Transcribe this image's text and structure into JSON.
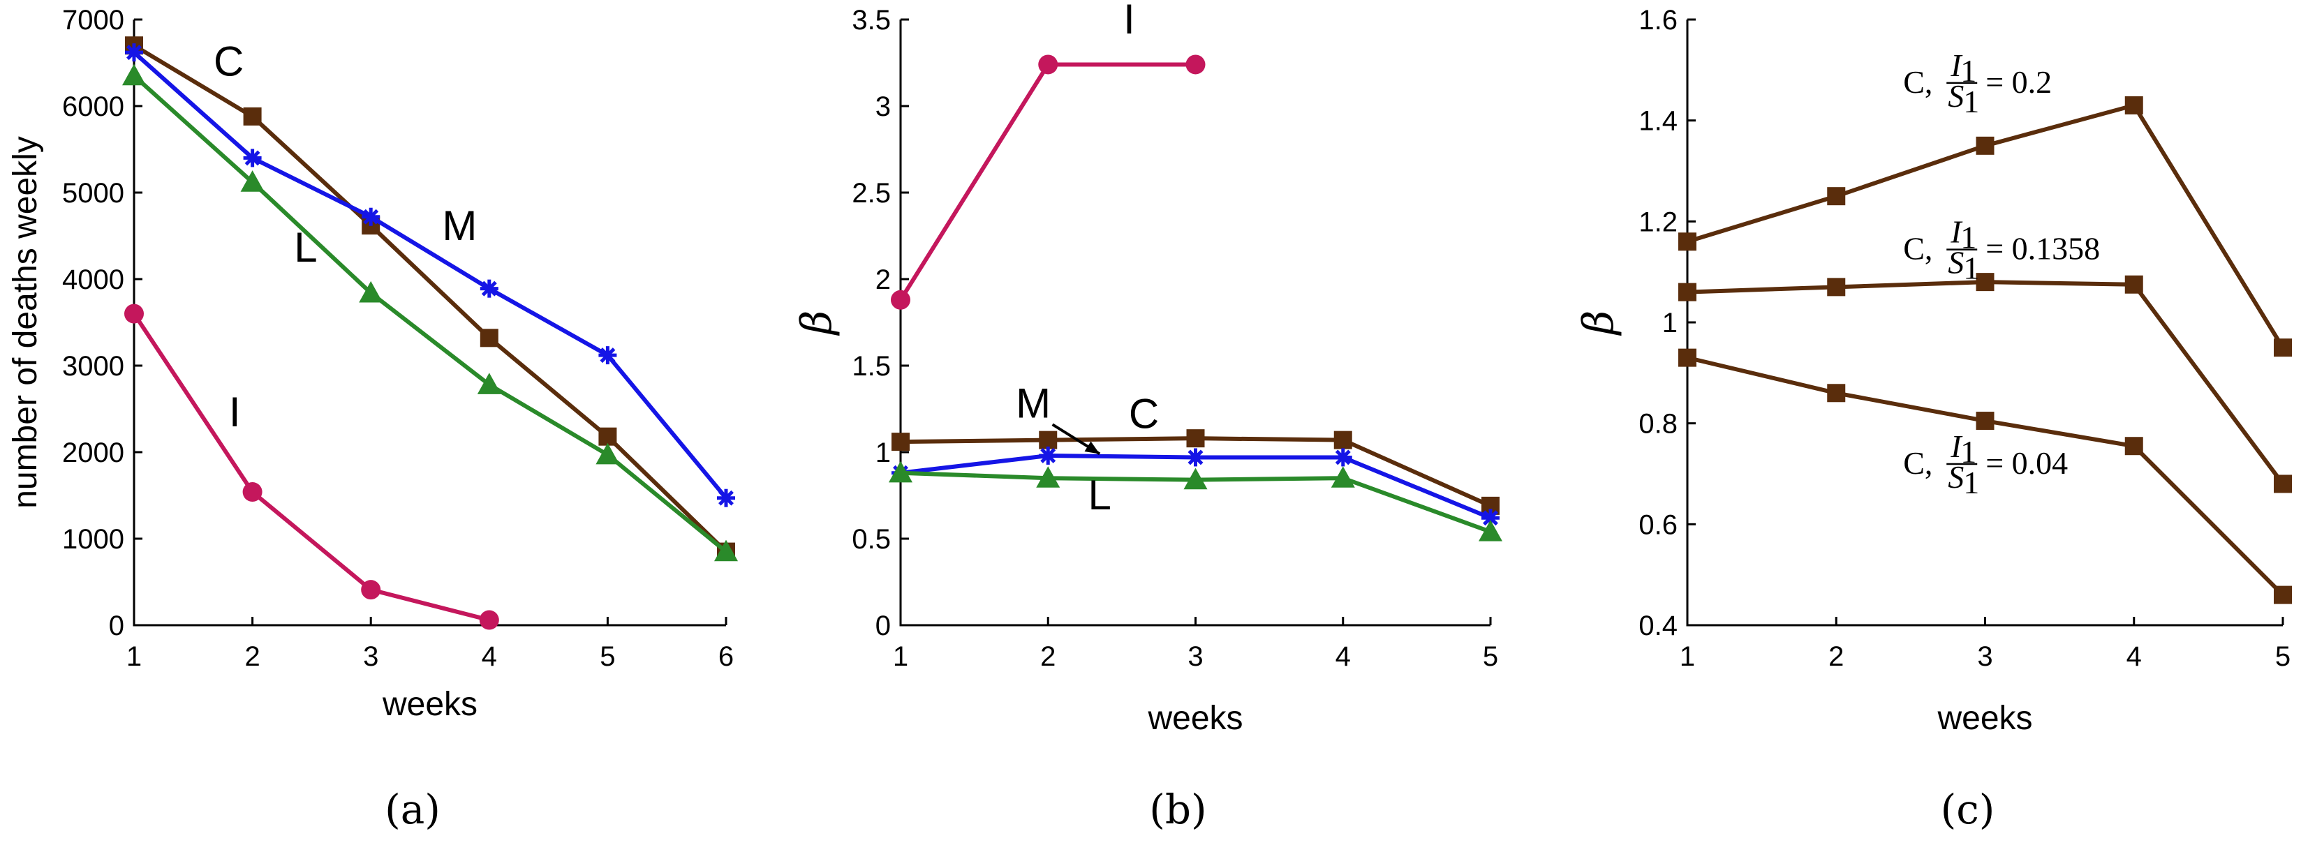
{
  "chart_data": [
    {
      "type": "line",
      "caption": "(a)",
      "xlabel": "weeks",
      "ylabel": "number of deaths weekly",
      "xlim": [
        1,
        6
      ],
      "ylim": [
        0,
        7000
      ],
      "xticks": [
        1,
        2,
        3,
        4,
        5,
        6
      ],
      "yticks": [
        0,
        1000,
        2000,
        3000,
        4000,
        5000,
        6000,
        7000
      ],
      "series": [
        {
          "name": "C",
          "color": "#5a2d0c",
          "marker": "square",
          "x": [
            1,
            2,
            3,
            4,
            5,
            6
          ],
          "y": [
            6700,
            5880,
            4620,
            3320,
            2180,
            850
          ]
        },
        {
          "name": "M",
          "color": "#1515e6",
          "marker": "star",
          "x": [
            1,
            2,
            3,
            4,
            5,
            6
          ],
          "y": [
            6620,
            5400,
            4720,
            3890,
            3120,
            1470
          ]
        },
        {
          "name": "L",
          "color": "#2a8a2a",
          "marker": "triangle",
          "x": [
            1,
            2,
            3,
            4,
            5,
            6
          ],
          "y": [
            6350,
            5120,
            3840,
            2780,
            1970,
            850
          ]
        },
        {
          "name": "I",
          "color": "#c4175c",
          "marker": "circle",
          "x": [
            1,
            2,
            3,
            4
          ],
          "y": [
            3600,
            1540,
            410,
            60
          ]
        }
      ],
      "annotations": [
        {
          "text": "C",
          "x": 1.8,
          "y": 6350
        },
        {
          "text": "M",
          "x": 3.75,
          "y": 4450
        },
        {
          "text": "L",
          "x": 2.45,
          "y": 4200
        },
        {
          "text": "I",
          "x": 1.85,
          "y": 2300
        }
      ]
    },
    {
      "type": "line",
      "caption": "(b)",
      "xlabel": "weeks",
      "ylabel": "β",
      "xlim": [
        1,
        5
      ],
      "ylim": [
        0,
        3.5
      ],
      "xticks": [
        1,
        2,
        3,
        4,
        5
      ],
      "yticks": [
        0,
        0.5,
        1,
        1.5,
        2,
        2.5,
        3,
        3.5
      ],
      "series": [
        {
          "name": "C",
          "color": "#5a2d0c",
          "marker": "square",
          "x": [
            1,
            2,
            3,
            4,
            5
          ],
          "y": [
            1.06,
            1.07,
            1.08,
            1.07,
            0.69
          ]
        },
        {
          "name": "M",
          "color": "#1515e6",
          "marker": "star",
          "x": [
            1,
            2,
            3,
            4,
            5
          ],
          "y": [
            0.88,
            0.98,
            0.97,
            0.97,
            0.62
          ]
        },
        {
          "name": "L",
          "color": "#2a8a2a",
          "marker": "triangle",
          "x": [
            1,
            2,
            3,
            4,
            5
          ],
          "y": [
            0.88,
            0.85,
            0.84,
            0.85,
            0.54
          ]
        },
        {
          "name": "I",
          "color": "#c4175c",
          "marker": "circle",
          "x": [
            1,
            2,
            3
          ],
          "y": [
            1.88,
            3.24,
            3.24
          ]
        }
      ],
      "annotations": [
        {
          "text": "I",
          "x": 2.55,
          "y": 3.42
        },
        {
          "text": "M",
          "x": 1.9,
          "y": 1.2
        },
        {
          "text": "C",
          "x": 2.65,
          "y": 1.14
        },
        {
          "text": "L",
          "x": 2.35,
          "y": 0.67
        }
      ]
    },
    {
      "type": "line",
      "caption": "(c)",
      "xlabel": "weeks",
      "ylabel": "β",
      "xlim": [
        1,
        5
      ],
      "ylim": [
        0.4,
        1.6
      ],
      "xticks": [
        1,
        2,
        3,
        4,
        5
      ],
      "yticks": [
        0.4,
        0.6,
        0.8,
        1.0,
        1.2,
        1.4,
        1.6
      ],
      "ytick_labels": [
        "0.4",
        "0.6",
        "0.8",
        "1",
        "1.2",
        "1.4",
        "1.6"
      ],
      "series": [
        {
          "name": "C, I1/S1 = 0.2",
          "color": "#5a2d0c",
          "marker": "square",
          "x": [
            1,
            2,
            3,
            4,
            5
          ],
          "y": [
            1.16,
            1.25,
            1.35,
            1.43,
            0.95
          ]
        },
        {
          "name": "C, I1/S1 = 0.1358",
          "color": "#5a2d0c",
          "marker": "square",
          "x": [
            1,
            2,
            3,
            4,
            5
          ],
          "y": [
            1.06,
            1.07,
            1.08,
            1.075,
            0.68
          ]
        },
        {
          "name": "C, I1/S1 = 0.04",
          "color": "#5a2d0c",
          "marker": "square",
          "x": [
            1,
            2,
            3,
            4,
            5
          ],
          "y": [
            0.93,
            0.86,
            0.805,
            0.755,
            0.46
          ]
        }
      ],
      "annotations": [
        {
          "prefix": "C,",
          "num": "I",
          "num_sub": "1",
          "den": "S",
          "den_sub": "1",
          "rhs": "= 0.2",
          "x": 2.45,
          "y": 1.455
        },
        {
          "prefix": "C,",
          "num": "I",
          "num_sub": "1",
          "den": "S",
          "den_sub": "1",
          "rhs": "= 0.1358",
          "x": 2.45,
          "y": 1.125
        },
        {
          "prefix": "C,",
          "num": "I",
          "num_sub": "1",
          "den": "S",
          "den_sub": "1",
          "rhs": "= 0.04",
          "x": 2.45,
          "y": 0.7
        }
      ]
    }
  ]
}
